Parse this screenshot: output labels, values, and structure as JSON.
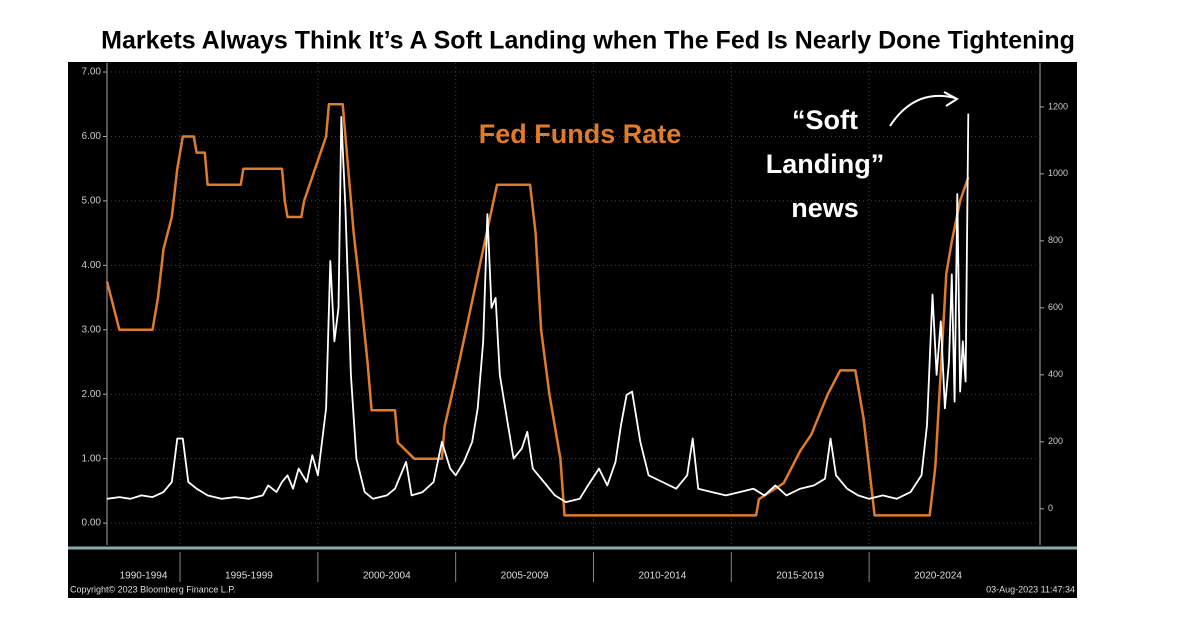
{
  "chart_data": {
    "type": "line",
    "title": "Markets Always Think It’s A Soft Landing when The Fed Is Nearly Done Tightening",
    "xlim": [
      1992.35,
      2026.2
    ],
    "periods": [
      {
        "label": "1990-1994",
        "start": 1990,
        "end": 1995
      },
      {
        "label": "1995-1999",
        "start": 1995,
        "end": 2000
      },
      {
        "label": "2000-2004",
        "start": 2000,
        "end": 2005
      },
      {
        "label": "2005-2009",
        "start": 2005,
        "end": 2010
      },
      {
        "label": "2010-2014",
        "start": 2010,
        "end": 2015
      },
      {
        "label": "2015-2019",
        "start": 2015,
        "end": 2020
      },
      {
        "label": "2020-2024",
        "start": 2020,
        "end": 2025
      }
    ],
    "ylim": [
      -0.34,
      7.14
    ],
    "yticks": [
      {
        "value": 0,
        "label": "0.00"
      },
      {
        "value": 1,
        "label": "1.00"
      },
      {
        "value": 2,
        "label": "2.00"
      },
      {
        "value": 3,
        "label": "3.00"
      },
      {
        "value": 4,
        "label": "4.00"
      },
      {
        "value": 5,
        "label": "5.00"
      },
      {
        "value": 6,
        "label": "6.00"
      },
      {
        "value": 7,
        "label": "7.00"
      }
    ],
    "y2lim": [
      -108,
      1331
    ],
    "y2ticks": [
      0,
      200,
      400,
      600,
      800,
      1000,
      1200
    ],
    "grid": true,
    "series": [
      {
        "name": "Fed Funds Rate",
        "color": "#e07b2a",
        "axis": "y",
        "x": [
          1992.35,
          1992.8,
          1994.0,
          1994.2,
          1994.4,
          1994.7,
          1994.9,
          1995.1,
          1995.5,
          1995.6,
          1995.9,
          1996.0,
          1997.2,
          1997.3,
          1998.7,
          1998.8,
          1998.9,
          1999.4,
          1999.5,
          1999.7,
          1999.9,
          2000.1,
          2000.3,
          2000.4,
          2000.9,
          2001.1,
          2001.3,
          2001.5,
          2001.8,
          2001.95,
          2002.8,
          2002.9,
          2003.5,
          2004.5,
          2004.6,
          2005.0,
          2005.5,
          2006.0,
          2006.5,
          2007.7,
          2007.9,
          2008.1,
          2008.4,
          2008.8,
          2008.95,
          2015.9,
          2016.0,
          2016.9,
          2017.5,
          2017.9,
          2018.5,
          2018.95,
          2019.5,
          2019.6,
          2019.8,
          2020.2,
          2022.2,
          2022.4,
          2022.6,
          2022.8,
          2023.0,
          2023.3,
          2023.6
        ],
        "values": [
          3.75,
          3.0,
          3.0,
          3.5,
          4.25,
          4.75,
          5.5,
          6.0,
          6.0,
          5.75,
          5.75,
          5.25,
          5.25,
          5.5,
          5.5,
          5.0,
          4.75,
          4.75,
          5.0,
          5.25,
          5.5,
          5.75,
          6.0,
          6.5,
          6.5,
          5.5,
          4.5,
          3.75,
          2.5,
          1.75,
          1.75,
          1.25,
          1.0,
          1.0,
          1.5,
          2.25,
          3.25,
          4.25,
          5.25,
          5.25,
          4.5,
          3.0,
          2.0,
          1.0,
          0.12,
          0.12,
          0.37,
          0.62,
          1.12,
          1.37,
          2.0,
          2.37,
          2.37,
          2.12,
          1.62,
          0.12,
          0.12,
          0.87,
          2.37,
          3.87,
          4.37,
          5.0,
          5.37
        ]
      },
      {
        "color": "#ffffff",
        "axis": "y2",
        "x": [
          1992.35,
          1992.8,
          1993.2,
          1993.6,
          1994.0,
          1994.4,
          1994.7,
          1994.9,
          1995.1,
          1995.3,
          1995.6,
          1996.0,
          1996.5,
          1997.0,
          1997.5,
          1998.0,
          1998.2,
          1998.5,
          1998.7,
          1998.9,
          1999.1,
          1999.3,
          1999.6,
          1999.8,
          2000.0,
          2000.3,
          2000.45,
          2000.6,
          2000.75,
          2000.85,
          2001.0,
          2001.2,
          2001.4,
          2001.7,
          2002.0,
          2002.5,
          2002.8,
          2003.2,
          2003.4,
          2003.8,
          2004.2,
          2004.5,
          2004.8,
          2005.0,
          2005.3,
          2005.6,
          2005.8,
          2006.0,
          2006.15,
          2006.3,
          2006.45,
          2006.6,
          2006.9,
          2007.1,
          2007.4,
          2007.6,
          2007.8,
          2008.2,
          2008.6,
          2009.0,
          2009.5,
          2009.8,
          2010.2,
          2010.5,
          2010.8,
          2011.0,
          2011.2,
          2011.4,
          2011.7,
          2012.0,
          2012.5,
          2013.0,
          2013.4,
          2013.6,
          2013.8,
          2014.3,
          2014.8,
          2015.3,
          2015.8,
          2016.2,
          2016.6,
          2017.0,
          2017.5,
          2018.0,
          2018.4,
          2018.6,
          2018.8,
          2019.2,
          2019.6,
          2020.0,
          2020.5,
          2021.0,
          2021.5,
          2021.9,
          2022.1,
          2022.3,
          2022.45,
          2022.6,
          2022.75,
          2022.9,
          2023.0,
          2023.1,
          2023.2,
          2023.3,
          2023.4,
          2023.5,
          2023.6
        ],
        "values": [
          30,
          35,
          30,
          40,
          35,
          50,
          80,
          210,
          210,
          80,
          60,
          40,
          30,
          35,
          30,
          40,
          70,
          50,
          80,
          100,
          60,
          120,
          80,
          160,
          100,
          300,
          740,
          500,
          600,
          1170,
          900,
          400,
          150,
          50,
          30,
          40,
          60,
          140,
          40,
          50,
          80,
          200,
          120,
          100,
          140,
          200,
          300,
          500,
          880,
          600,
          630,
          400,
          250,
          150,
          180,
          230,
          120,
          80,
          40,
          20,
          30,
          70,
          120,
          70,
          140,
          250,
          340,
          350,
          200,
          100,
          80,
          60,
          100,
          210,
          60,
          50,
          40,
          50,
          60,
          40,
          70,
          40,
          60,
          70,
          90,
          210,
          100,
          60,
          40,
          30,
          40,
          30,
          50,
          100,
          250,
          640,
          400,
          560,
          300,
          440,
          700,
          320,
          940,
          350,
          500,
          380,
          1180
        ]
      }
    ],
    "annotation_lines": [
      "“Soft",
      "Landing”",
      "news"
    ],
    "source": "Copyright© 2023 Bloomberg Finance L.P.",
    "timestamp": "03-Aug-2023 11:47:34"
  }
}
